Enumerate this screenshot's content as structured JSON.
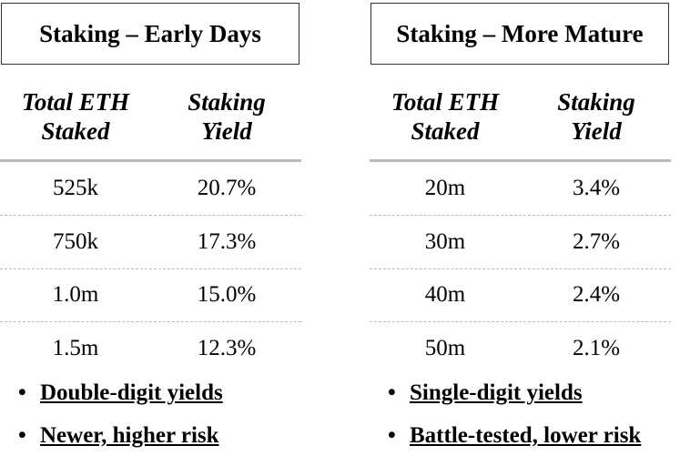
{
  "panels": [
    {
      "title": "Staking – Early Days",
      "headers": [
        "Total ETH Staked",
        "Staking Yield"
      ],
      "rows": [
        [
          "525k",
          "20.7%"
        ],
        [
          "750k",
          "17.3%"
        ],
        [
          "1.0m",
          "15.0%"
        ],
        [
          "1.5m",
          "12.3%"
        ]
      ],
      "bullets": [
        "Double-digit yields",
        "Newer, higher risk"
      ]
    },
    {
      "title": "Staking – More Mature",
      "headers": [
        "Total ETH Staked",
        "Staking Yield"
      ],
      "rows": [
        [
          "20m",
          "3.4%"
        ],
        [
          "30m",
          "2.7%"
        ],
        [
          "40m",
          "2.4%"
        ],
        [
          "50m",
          "2.1%"
        ]
      ],
      "bullets": [
        "Single-digit yields",
        "Battle-tested, lower risk"
      ]
    }
  ]
}
